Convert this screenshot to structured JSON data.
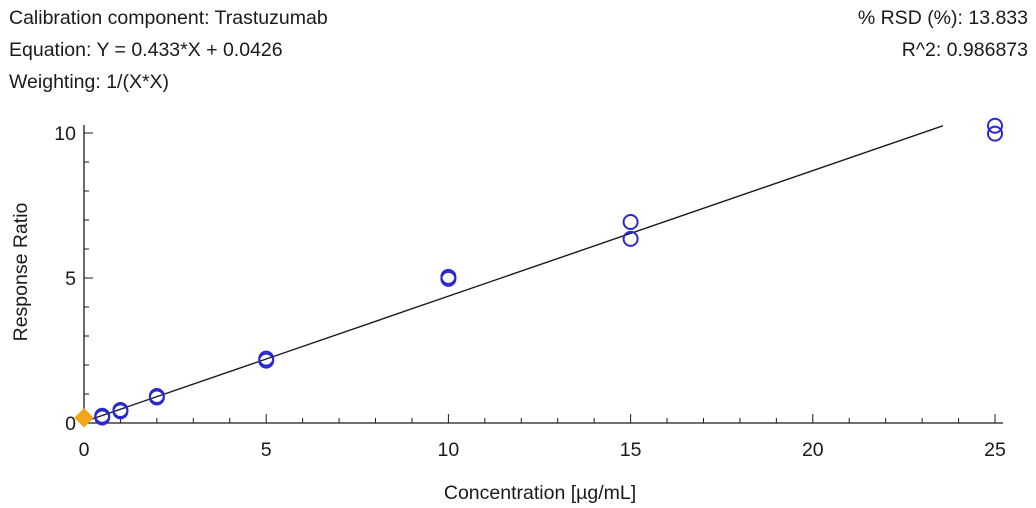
{
  "header": {
    "component_label": "Calibration component: Trastuzumab",
    "equation_label": "Equation: Y = 0.433*X + 0.0426",
    "weighting_label": "Weighting: 1/(X*X)",
    "rsd_label": "% RSD (%): 13.833",
    "r2_label": "R^2: 0.986873"
  },
  "chart_data": {
    "type": "scatter",
    "title": "",
    "xlabel": "Concentration [µg/mL]",
    "ylabel": "Response Ratio",
    "xlim": [
      0,
      25
    ],
    "ylim": [
      0,
      10
    ],
    "x_ticks": [
      0,
      5,
      10,
      15,
      20,
      25
    ],
    "y_ticks": [
      0,
      5,
      10
    ],
    "grid": false,
    "fit": {
      "slope": 0.433,
      "intercept": 0.0426,
      "color": "#1a1a1a"
    },
    "series": [
      {
        "marker": "open-circle",
        "color": "#2a2acc",
        "points": [
          {
            "x": 0.5,
            "y": 0.25
          },
          {
            "x": 0.5,
            "y": 0.19
          },
          {
            "x": 1,
            "y": 0.45
          },
          {
            "x": 1,
            "y": 0.4
          },
          {
            "x": 2,
            "y": 0.93
          },
          {
            "x": 2,
            "y": 0.88
          },
          {
            "x": 5,
            "y": 2.22
          },
          {
            "x": 5,
            "y": 2.15
          },
          {
            "x": 10,
            "y": 5.04
          },
          {
            "x": 10,
            "y": 4.97
          },
          {
            "x": 15,
            "y": 6.93
          },
          {
            "x": 15,
            "y": 6.35
          },
          {
            "x": 25,
            "y": 10.25
          },
          {
            "x": 25,
            "y": 9.98
          }
        ]
      },
      {
        "marker": "diamond",
        "color": "#f2a71b",
        "points": [
          {
            "x": 0,
            "y": 0.18
          }
        ]
      }
    ]
  }
}
